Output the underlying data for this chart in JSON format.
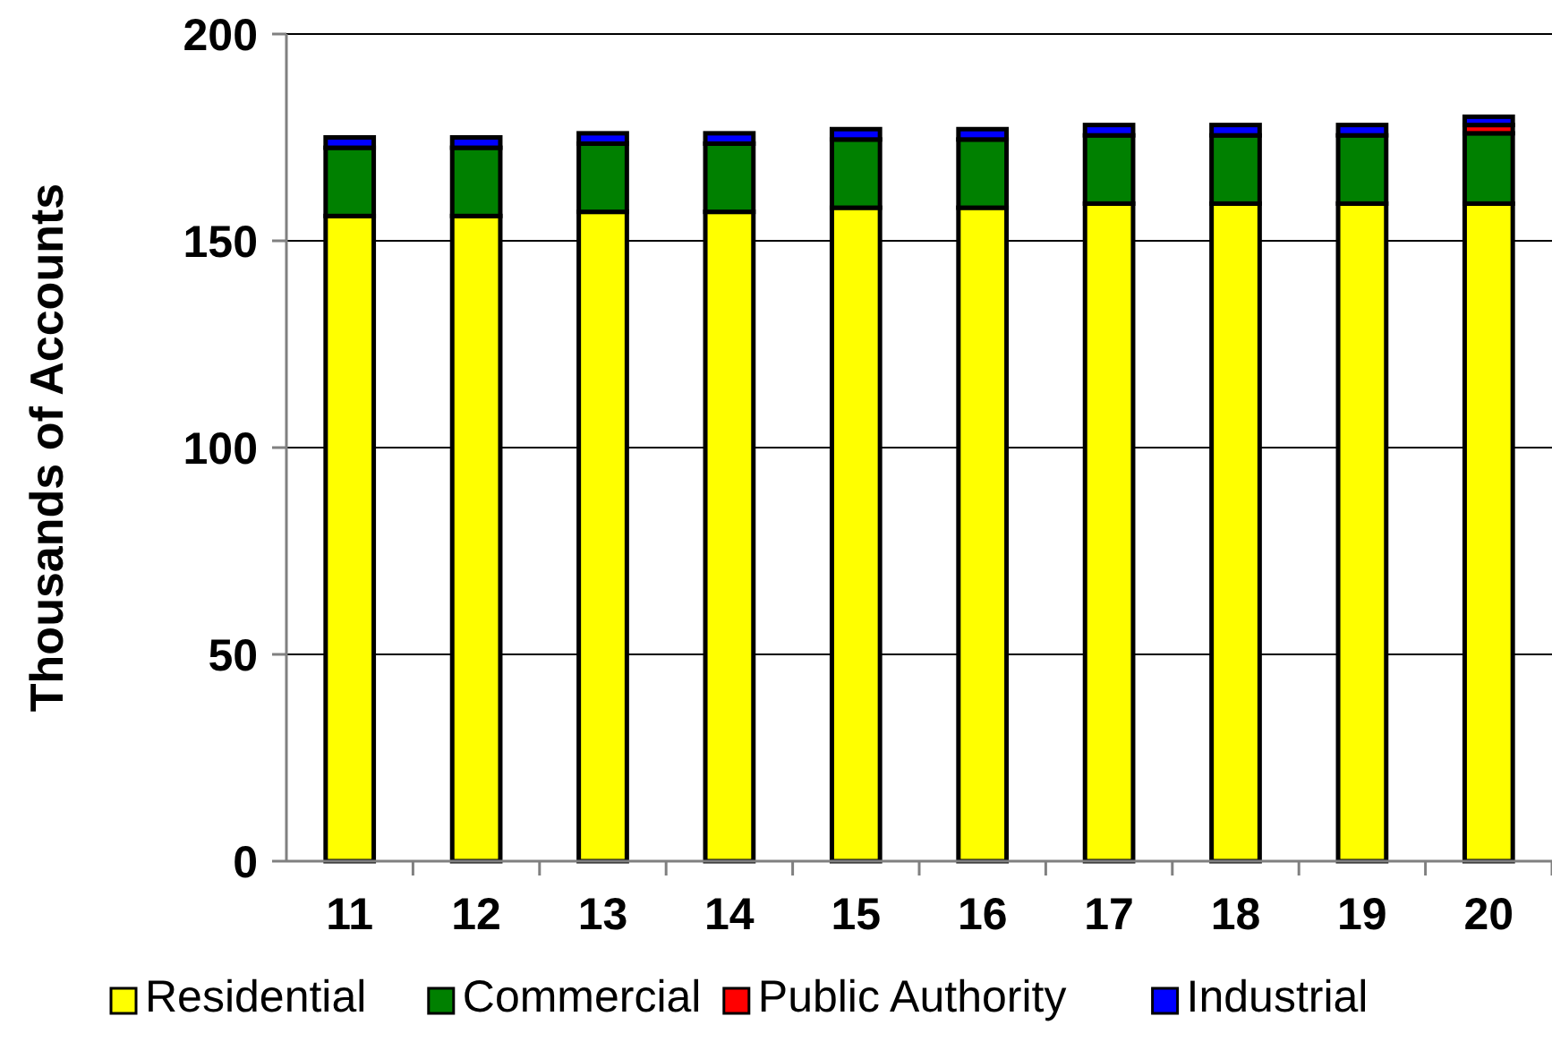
{
  "chart_data": {
    "type": "bar",
    "stacked": true,
    "ylabel": "Thousands of Accounts",
    "categories": [
      "11",
      "12",
      "13",
      "14",
      "15",
      "16",
      "17",
      "18",
      "19",
      "20"
    ],
    "series": [
      {
        "name": "Residential",
        "color": "#ffff00",
        "values": [
          156,
          156,
          157,
          157,
          158,
          158,
          159,
          159,
          159,
          159
        ]
      },
      {
        "name": "Commercial",
        "color": "#008000",
        "values": [
          16.5,
          16.5,
          16.5,
          16.5,
          16.5,
          16.5,
          16.5,
          16.5,
          16.5,
          17
        ]
      },
      {
        "name": "Public Authority",
        "color": "#ff0000",
        "values": [
          null,
          null,
          null,
          null,
          null,
          null,
          null,
          null,
          null,
          2
        ]
      },
      {
        "name": "Industrial",
        "color": "#0000ff",
        "values": [
          2.5,
          2.5,
          2.5,
          2.5,
          2.5,
          2.5,
          2.5,
          2.5,
          2.5,
          2
        ]
      }
    ],
    "ylim": [
      0,
      200
    ],
    "yticks": [
      0,
      50,
      100,
      150,
      200
    ],
    "grid": "y",
    "legend": "bottom"
  }
}
